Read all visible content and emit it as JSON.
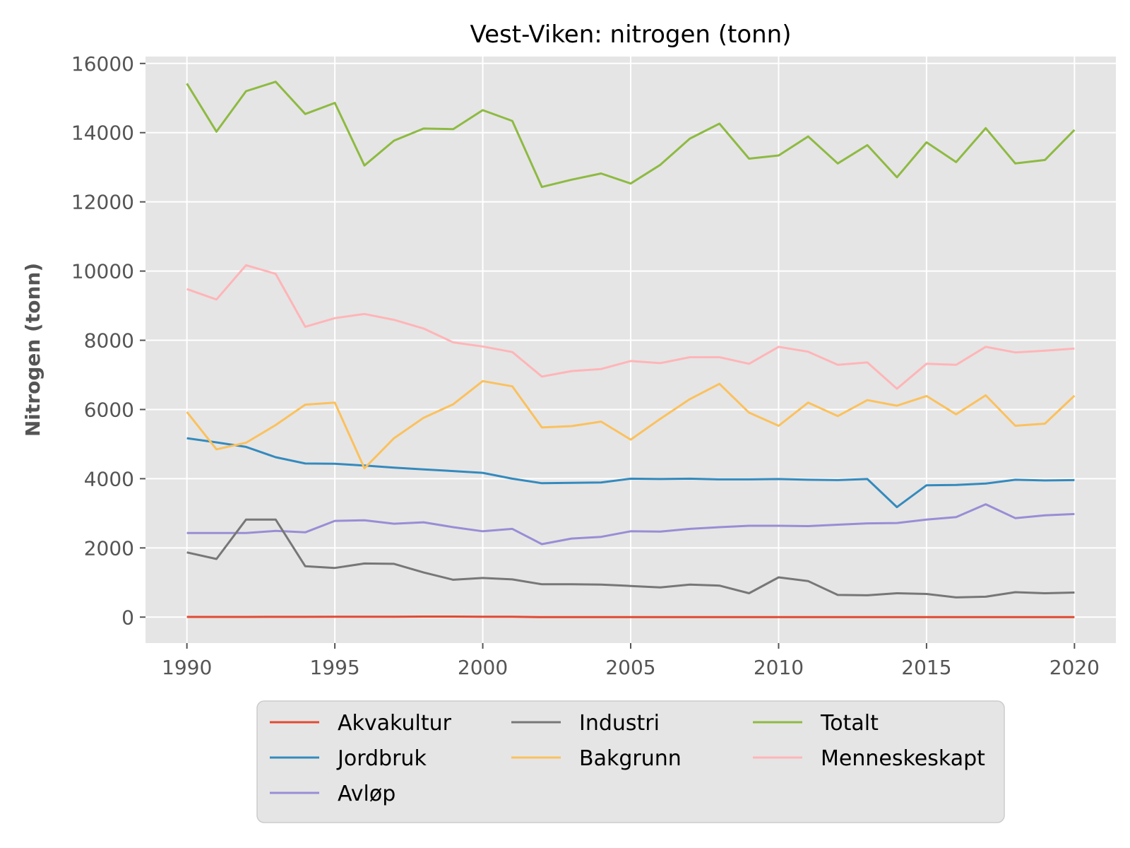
{
  "chart_data": {
    "type": "line",
    "title": "Vest-Viken: nitrogen (tonn)",
    "xlabel": "",
    "ylabel": "Nitrogen (tonn)",
    "xlim": [
      1988.6,
      2021.4
    ],
    "ylim": [
      -750,
      16200
    ],
    "xticks": [
      1990,
      1995,
      2000,
      2005,
      2010,
      2015,
      2020
    ],
    "yticks": [
      0,
      2000,
      4000,
      6000,
      8000,
      10000,
      12000,
      14000,
      16000
    ],
    "grid": true,
    "legend_position": "bottom",
    "x": [
      1990,
      1991,
      1992,
      1993,
      1994,
      1995,
      1996,
      1997,
      1998,
      1999,
      2000,
      2001,
      2002,
      2003,
      2004,
      2005,
      2006,
      2007,
      2008,
      2009,
      2010,
      2011,
      2012,
      2013,
      2014,
      2015,
      2016,
      2017,
      2018,
      2019,
      2020
    ],
    "series": [
      {
        "name": "Akvakultur",
        "color": "#E24A33",
        "values": [
          5,
          5,
          5,
          8,
          8,
          10,
          10,
          12,
          15,
          15,
          12,
          10,
          0,
          0,
          0,
          0,
          0,
          0,
          0,
          0,
          0,
          0,
          0,
          0,
          0,
          0,
          0,
          0,
          0,
          0,
          0
        ]
      },
      {
        "name": "Jordbruk",
        "color": "#348ABD",
        "values": [
          5170,
          5050,
          4920,
          4620,
          4440,
          4430,
          4380,
          4320,
          4270,
          4220,
          4170,
          4000,
          3870,
          3880,
          3890,
          4000,
          3990,
          4000,
          3980,
          3980,
          3990,
          3970,
          3960,
          3990,
          3180,
          3810,
          3820,
          3860,
          3970,
          3950,
          3960
        ]
      },
      {
        "name": "Avløp",
        "color": "#988ED5",
        "values": [
          2430,
          2430,
          2430,
          2490,
          2450,
          2780,
          2800,
          2700,
          2740,
          2600,
          2480,
          2550,
          2110,
          2270,
          2320,
          2480,
          2470,
          2550,
          2600,
          2640,
          2640,
          2630,
          2670,
          2710,
          2720,
          2820,
          2890,
          3260,
          2860,
          2940,
          2980
        ]
      },
      {
        "name": "Industri",
        "color": "#777777",
        "values": [
          1870,
          1680,
          2820,
          2820,
          1470,
          1420,
          1550,
          1540,
          1290,
          1080,
          1130,
          1090,
          950,
          950,
          940,
          900,
          860,
          940,
          910,
          690,
          1150,
          1040,
          640,
          630,
          690,
          670,
          570,
          590,
          720,
          690,
          710
        ]
      },
      {
        "name": "Bakgrunn",
        "color": "#FBC15E",
        "values": [
          5930,
          4850,
          5040,
          5550,
          6140,
          6200,
          4300,
          5170,
          5760,
          6150,
          6820,
          6670,
          5480,
          5520,
          5650,
          5130,
          5730,
          6300,
          6740,
          5910,
          5530,
          6200,
          5810,
          6270,
          6110,
          6390,
          5860,
          6410,
          5530,
          5590,
          6400
        ]
      },
      {
        "name": "Totalt",
        "color": "#8EBA42",
        "values": [
          15420,
          14030,
          15200,
          15470,
          14540,
          14860,
          13050,
          13770,
          14120,
          14100,
          14650,
          14340,
          12430,
          12640,
          12820,
          12530,
          13070,
          13830,
          14260,
          13250,
          13340,
          13890,
          13110,
          13640,
          12710,
          13720,
          13150,
          14130,
          13110,
          13210,
          14080
        ]
      },
      {
        "name": "Menneskeskapt",
        "color": "#FFB5B8",
        "values": [
          9480,
          9180,
          10170,
          9920,
          8390,
          8640,
          8760,
          8590,
          8340,
          7940,
          7820,
          7660,
          6950,
          7110,
          7170,
          7400,
          7340,
          7510,
          7510,
          7320,
          7810,
          7670,
          7290,
          7360,
          6600,
          7320,
          7290,
          7810,
          7650,
          7700,
          7760
        ]
      }
    ],
    "legend_order": [
      "Akvakultur",
      "Industri",
      "Totalt",
      "Jordbruk",
      "Bakgrunn",
      "Menneskeskapt",
      "Avløp"
    ]
  }
}
